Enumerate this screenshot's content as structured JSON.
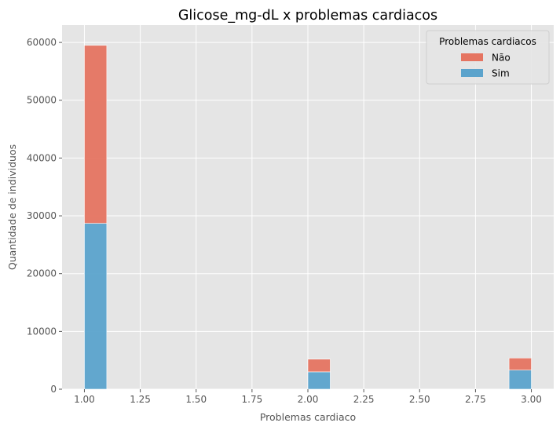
{
  "chart_data": {
    "type": "bar",
    "stacked": true,
    "title": "Glicose_mg-dL x problemas cardiacos",
    "xlabel": "Problemas cardiaco",
    "ylabel": "Quantidade de individuos",
    "xlim": [
      0.9,
      3.1
    ],
    "ylim": [
      0,
      63000
    ],
    "xticks": [
      "1.00",
      "1.25",
      "1.50",
      "1.75",
      "2.00",
      "2.25",
      "2.50",
      "2.75",
      "3.00"
    ],
    "yticks": [
      "0",
      "10000",
      "20000",
      "30000",
      "40000",
      "50000",
      "60000"
    ],
    "grid": true,
    "legend_position": "top-right",
    "legend_title": "Problemas cardiacos",
    "bins": [
      {
        "x_start": 1.0,
        "x_end": 1.1
      },
      {
        "x_start": 2.0,
        "x_end": 2.1
      },
      {
        "x_start": 2.9,
        "x_end": 3.0
      }
    ],
    "series": [
      {
        "name": "Sim",
        "color": "#5ba3cc",
        "values": [
          28700,
          3000,
          3300
        ]
      },
      {
        "name": "Não",
        "color": "#e57461",
        "values": [
          30800,
          2200,
          2100
        ]
      }
    ],
    "legend_order": [
      "Não",
      "Sim"
    ]
  }
}
